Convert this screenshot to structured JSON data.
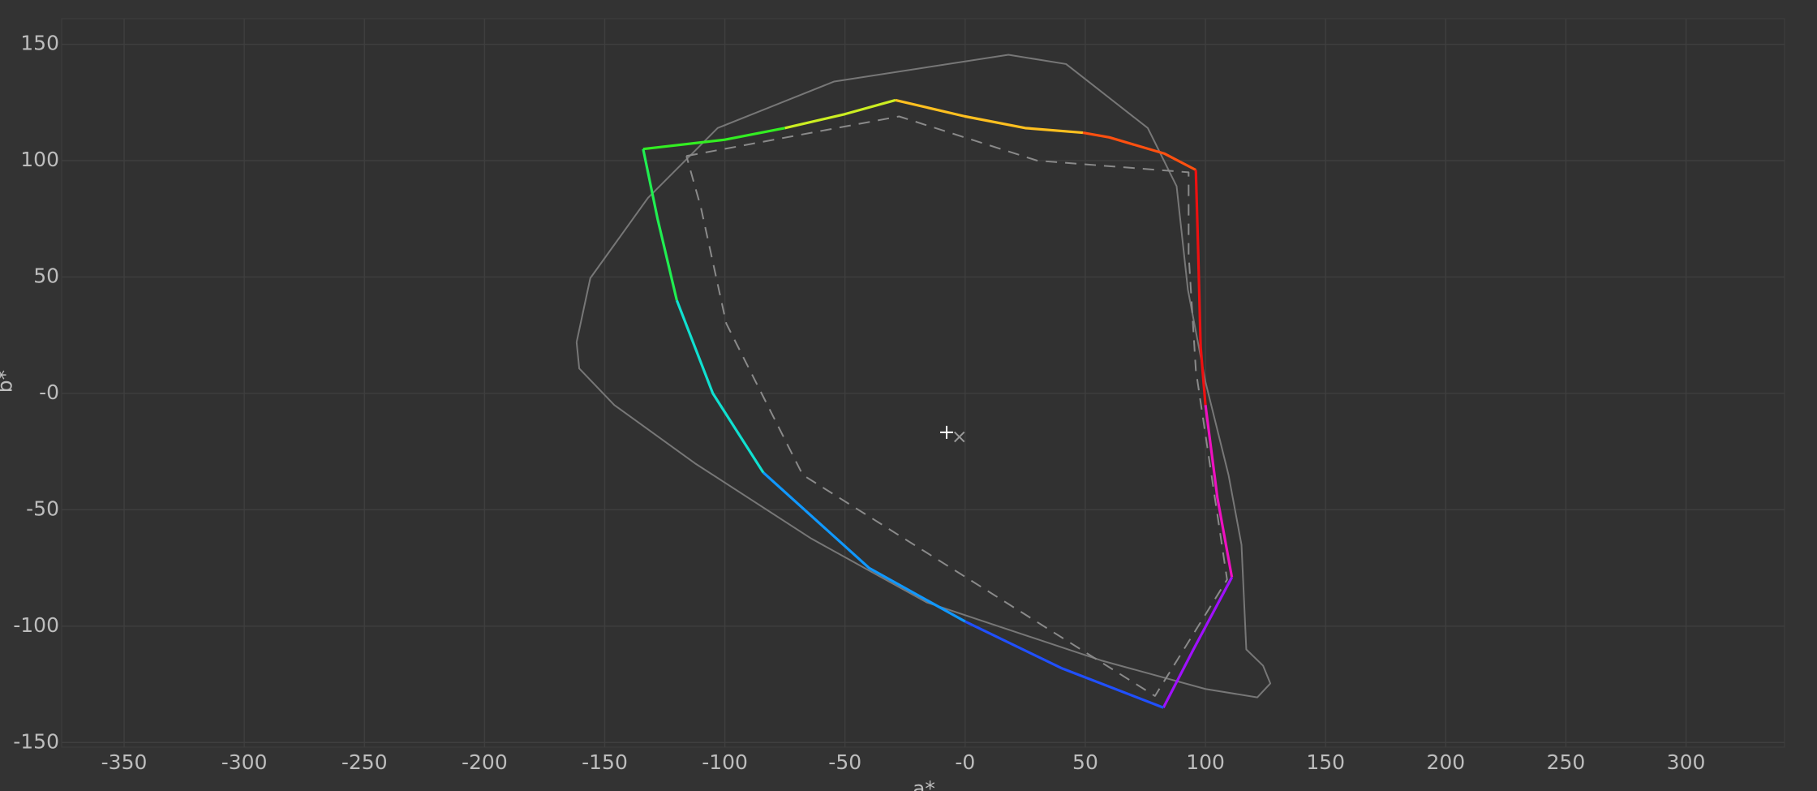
{
  "chart_data": {
    "type": "line",
    "xlabel": "a*",
    "ylabel": "b*",
    "xlim": [
      -376,
      341
    ],
    "ylim": [
      -152,
      161
    ],
    "grid": true,
    "xticks": [
      -350,
      -300,
      -250,
      -200,
      -150,
      -100,
      -50,
      {
        "value": 0,
        "label": "-0"
      },
      50,
      100,
      150,
      200,
      250,
      300
    ],
    "yticks": [
      -150,
      -100,
      -50,
      {
        "value": 0,
        "label": "-0"
      },
      50,
      100,
      150
    ],
    "series": [
      {
        "color": "#777777",
        "style": "solid",
        "x": [
          -161.7,
          -156,
          -132,
          -103,
          -54.5,
          18,
          42,
          76,
          88,
          92.7,
          100,
          109.6,
          115,
          117,
          124,
          127,
          121.6,
          100,
          56.5,
          -16,
          -64,
          -112.5,
          -146,
          -160.6,
          -161.7
        ],
        "values": [
          22,
          49.5,
          84,
          114,
          134,
          145.5,
          141.5,
          114,
          89,
          44.5,
          5,
          -35,
          -65,
          -110,
          -117,
          -124.6,
          -130.6,
          -127,
          -114.7,
          -89.8,
          -62.4,
          -30,
          -5,
          10.7,
          22
        ]
      },
      {
        "color": "#8a8a8a",
        "style": "dashed",
        "x": [
          -116,
          -27.5,
          30,
          93,
          93,
          96,
          109,
          79,
          -67.6,
          -99.4,
          -110,
          -116
        ],
        "values": [
          102,
          119,
          100,
          95,
          60,
          10,
          -80,
          -130,
          -35,
          30,
          80,
          102
        ]
      },
      {
        "color": "#33ee22",
        "style": "solid",
        "x": [
          -134,
          -100,
          -75
        ],
        "values": [
          105,
          109,
          114
        ]
      },
      {
        "color": "#ccee22",
        "style": "solid",
        "x": [
          -75,
          -50,
          -29
        ],
        "values": [
          114,
          120,
          126
        ]
      },
      {
        "color": "#ffc020",
        "style": "solid",
        "x": [
          -29,
          0,
          25,
          49
        ],
        "values": [
          126,
          119,
          114,
          112
        ]
      },
      {
        "color": "#ff5010",
        "style": "solid",
        "x": [
          49,
          60,
          83,
          96
        ],
        "values": [
          112,
          110,
          103,
          96
        ]
      },
      {
        "color": "#ee1010",
        "style": "solid",
        "x": [
          96,
          97,
          98,
          100
        ],
        "values": [
          96,
          60,
          20,
          -5
        ]
      },
      {
        "color": "#ee10c0",
        "style": "solid",
        "x": [
          100,
          105,
          111
        ],
        "values": [
          -5,
          -45,
          -79
        ]
      },
      {
        "color": "#a010ff",
        "style": "solid",
        "x": [
          111,
          95,
          82.5
        ],
        "values": [
          -79,
          -110,
          -135
        ]
      },
      {
        "color": "#2050ff",
        "style": "solid",
        "x": [
          82.5,
          40,
          0
        ],
        "values": [
          -135,
          -118,
          -98
        ]
      },
      {
        "color": "#1098ff",
        "style": "solid",
        "x": [
          0,
          -40,
          -84
        ],
        "values": [
          -98,
          -75,
          -34
        ]
      },
      {
        "color": "#10e0d0",
        "style": "solid",
        "x": [
          -84,
          -105,
          -120
        ],
        "values": [
          -34,
          0,
          40
        ]
      },
      {
        "color": "#20ee50",
        "style": "solid",
        "x": [
          -120,
          -128,
          -134
        ],
        "values": [
          40,
          75,
          105
        ]
      },
      {
        "color": "#ffffff",
        "marker": "+",
        "x": [
          -7.7
        ],
        "values": [
          -16.7
        ]
      },
      {
        "color": "#999999",
        "marker": "x",
        "x": [
          -2.4
        ],
        "values": [
          -18.7
        ]
      }
    ]
  }
}
